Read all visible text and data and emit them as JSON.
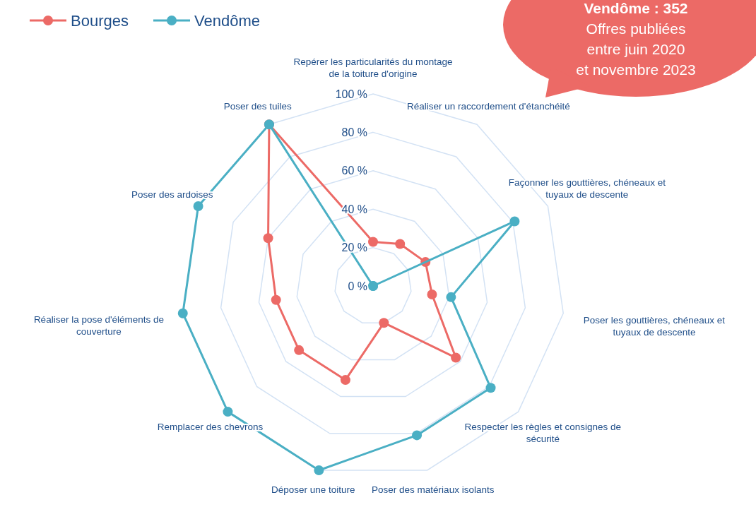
{
  "chart_data": {
    "type": "radar",
    "categories": [
      "Repérer les particularités du montage de la toiture d'origine",
      "Réaliser un raccordement d'étanchéité",
      "Façonner les gouttières, chéneaux et tuyaux de descente",
      "Poser les gouttières, chéneaux et tuyaux de descente",
      "Respecter les règles et consignes de sécurité",
      "Poser des matériaux isolants",
      "Déposer une toiture",
      "Remplacer des chevrons",
      "Réaliser la pose d'éléments de couverture",
      "Poser des ardoises",
      "Poser des tuiles"
    ],
    "series": [
      {
        "name": "Bourges",
        "color": "#ec6a66",
        "values": [
          23,
          26,
          30,
          31,
          57,
          20,
          51,
          51,
          51,
          60,
          100
        ]
      },
      {
        "name": "Vendôme",
        "color": "#4aafc4",
        "values": [
          0,
          0,
          81,
          41,
          81,
          81,
          100,
          100,
          100,
          100,
          100
        ]
      }
    ],
    "ylim": [
      0,
      100
    ],
    "yticks": [
      {
        "value": 0,
        "label": "0 %"
      },
      {
        "value": 20,
        "label": "20 %"
      },
      {
        "value": 40,
        "label": "40 %"
      },
      {
        "value": 60,
        "label": "60 %"
      },
      {
        "value": 80,
        "label": "80 %"
      },
      {
        "value": 100,
        "label": "100 %"
      }
    ],
    "grid": true,
    "legend": "top left",
    "marker": "circle",
    "line_style": "solid",
    "annotations": [
      "Vendôme : 352",
      "Offres publiées entre juin 2020 et novembre 2023"
    ]
  }
}
